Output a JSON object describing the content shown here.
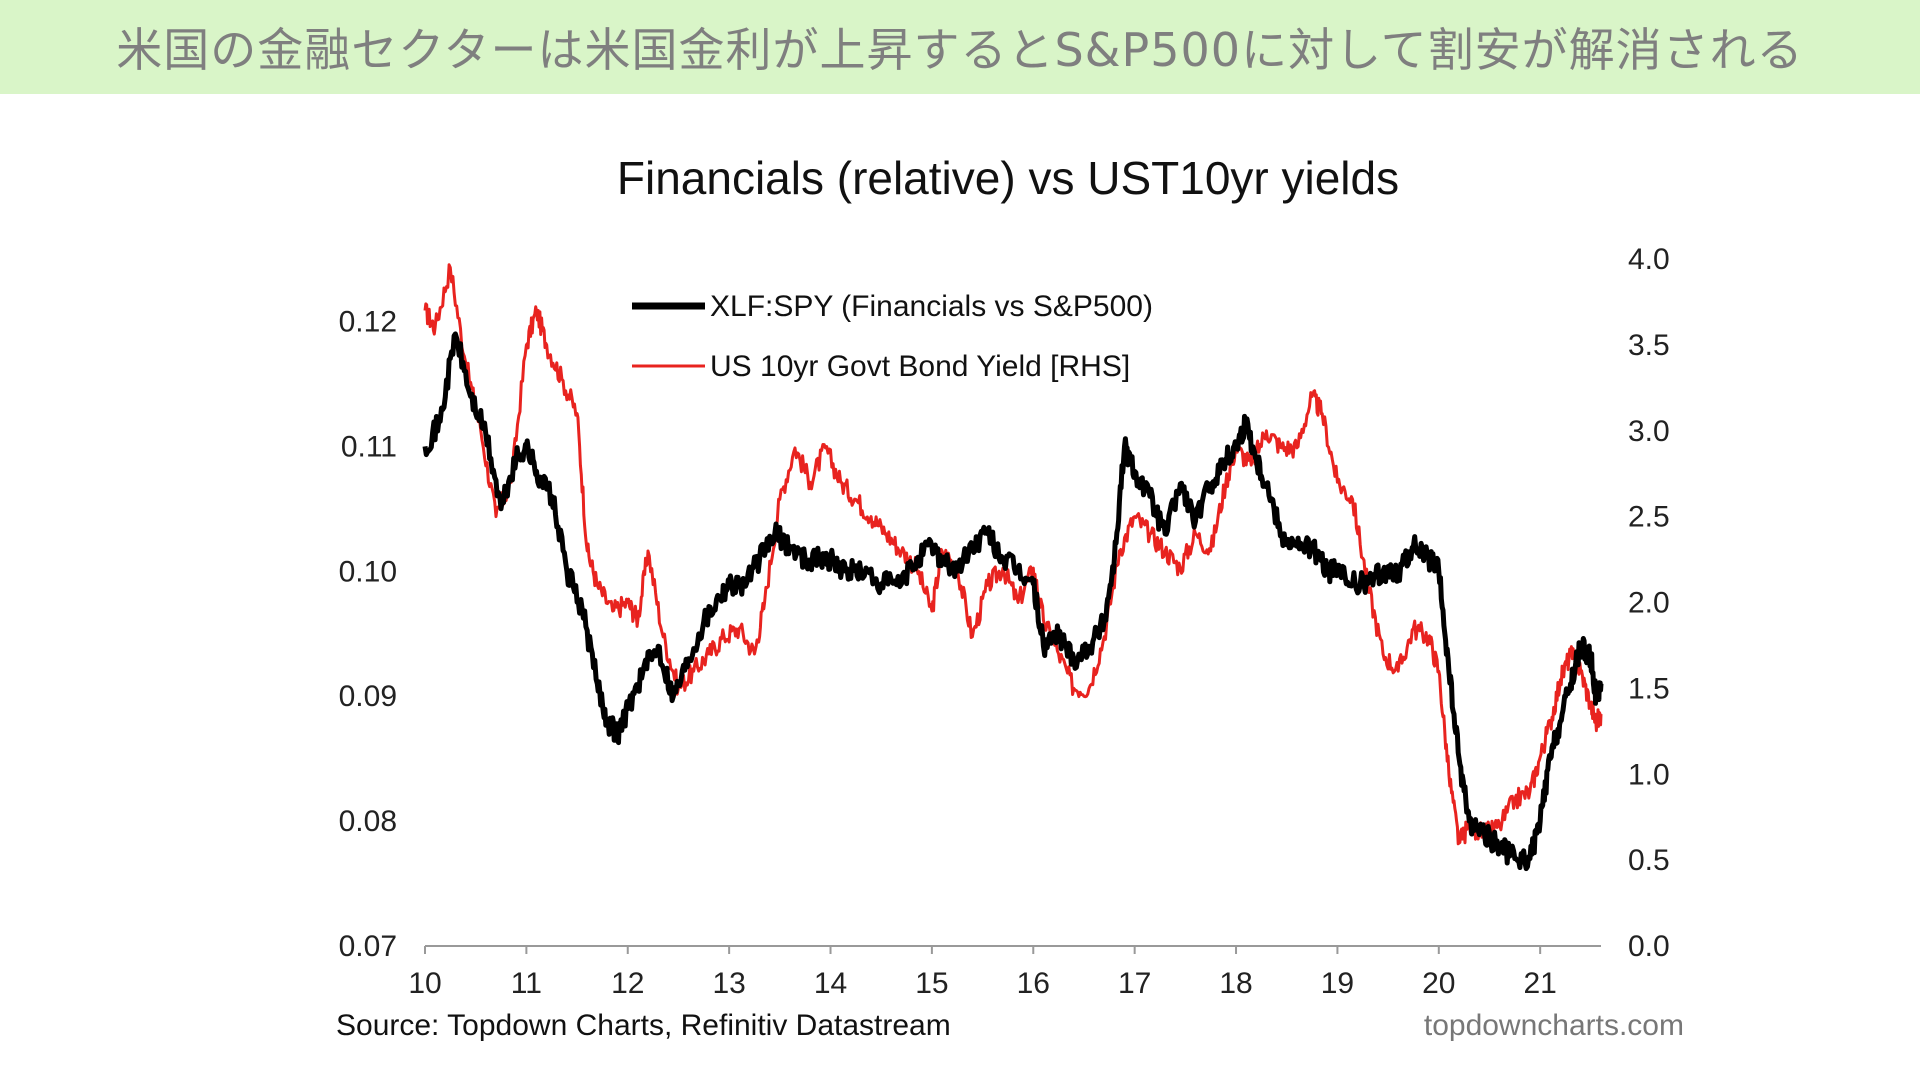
{
  "banner": {
    "text": "米国の金融セクターは米国金利が上昇するとS&P500に対して割安が解消される"
  },
  "colors": {
    "banner_bg": "#d9f5c8",
    "banner_text": "#7f7f7f",
    "xlf_series": "#000000",
    "yield_series": "#e8231f"
  },
  "chart_data": {
    "type": "line",
    "title": "Financials (relative) vs UST10yr yields",
    "source": "Source: Topdown Charts, Refinitiv Datastream",
    "brand": "topdowncharts.com",
    "x_range": [
      10.0,
      21.6
    ],
    "x_ticks": [
      "10",
      "11",
      "12",
      "13",
      "14",
      "15",
      "16",
      "17",
      "18",
      "19",
      "20",
      "21"
    ],
    "y_left": {
      "range": [
        0.07,
        0.125
      ],
      "ticks": [
        "0.07",
        "0.08",
        "0.09",
        "0.10",
        "0.11",
        "0.12"
      ]
    },
    "y_right": {
      "range": [
        0.0,
        4.0
      ],
      "ticks": [
        "0.0",
        "0.5",
        "1.0",
        "1.5",
        "2.0",
        "2.5",
        "3.0",
        "3.5",
        "4.0"
      ]
    },
    "legend_position": "top-left",
    "grid": false,
    "series": [
      {
        "name": "XLF:SPY (Financials vs S&P500)",
        "axis": "left",
        "points": [
          [
            10.0,
            0.11
          ],
          [
            10.15,
            0.112
          ],
          [
            10.3,
            0.119
          ],
          [
            10.45,
            0.114
          ],
          [
            10.6,
            0.111
          ],
          [
            10.75,
            0.105
          ],
          [
            10.9,
            0.109
          ],
          [
            11.0,
            0.11
          ],
          [
            11.1,
            0.108
          ],
          [
            11.25,
            0.106
          ],
          [
            11.4,
            0.1
          ],
          [
            11.55,
            0.097
          ],
          [
            11.7,
            0.091
          ],
          [
            11.8,
            0.088
          ],
          [
            11.9,
            0.087
          ],
          [
            12.0,
            0.089
          ],
          [
            12.15,
            0.092
          ],
          [
            12.3,
            0.094
          ],
          [
            12.45,
            0.09
          ],
          [
            12.6,
            0.093
          ],
          [
            12.75,
            0.096
          ],
          [
            12.9,
            0.098
          ],
          [
            13.0,
            0.099
          ],
          [
            13.15,
            0.099
          ],
          [
            13.3,
            0.101
          ],
          [
            13.45,
            0.103
          ],
          [
            13.6,
            0.102
          ],
          [
            13.75,
            0.101
          ],
          [
            13.9,
            0.101
          ],
          [
            14.0,
            0.101
          ],
          [
            14.15,
            0.1
          ],
          [
            14.3,
            0.1
          ],
          [
            14.5,
            0.099
          ],
          [
            14.7,
            0.099
          ],
          [
            14.85,
            0.101
          ],
          [
            15.0,
            0.102
          ],
          [
            15.1,
            0.101
          ],
          [
            15.25,
            0.1
          ],
          [
            15.4,
            0.102
          ],
          [
            15.55,
            0.103
          ],
          [
            15.7,
            0.101
          ],
          [
            15.85,
            0.1
          ],
          [
            16.0,
            0.099
          ],
          [
            16.1,
            0.094
          ],
          [
            16.25,
            0.095
          ],
          [
            16.4,
            0.093
          ],
          [
            16.55,
            0.094
          ],
          [
            16.7,
            0.096
          ],
          [
            16.8,
            0.101
          ],
          [
            16.9,
            0.11
          ],
          [
            17.0,
            0.108
          ],
          [
            17.15,
            0.106
          ],
          [
            17.3,
            0.103
          ],
          [
            17.45,
            0.107
          ],
          [
            17.6,
            0.104
          ],
          [
            17.75,
            0.107
          ],
          [
            17.9,
            0.109
          ],
          [
            18.0,
            0.11
          ],
          [
            18.1,
            0.112
          ],
          [
            18.2,
            0.109
          ],
          [
            18.3,
            0.107
          ],
          [
            18.45,
            0.103
          ],
          [
            18.6,
            0.102
          ],
          [
            18.75,
            0.102
          ],
          [
            18.9,
            0.1
          ],
          [
            19.0,
            0.1
          ],
          [
            19.15,
            0.099
          ],
          [
            19.3,
            0.099
          ],
          [
            19.45,
            0.1
          ],
          [
            19.6,
            0.1
          ],
          [
            19.75,
            0.102
          ],
          [
            19.9,
            0.101
          ],
          [
            20.0,
            0.1
          ],
          [
            20.1,
            0.092
          ],
          [
            20.2,
            0.085
          ],
          [
            20.3,
            0.08
          ],
          [
            20.45,
            0.079
          ],
          [
            20.6,
            0.078
          ],
          [
            20.75,
            0.077
          ],
          [
            20.9,
            0.077
          ],
          [
            21.0,
            0.08
          ],
          [
            21.1,
            0.085
          ],
          [
            21.2,
            0.088
          ],
          [
            21.3,
            0.091
          ],
          [
            21.4,
            0.094
          ],
          [
            21.5,
            0.093
          ],
          [
            21.55,
            0.09
          ],
          [
            21.6,
            0.091
          ]
        ]
      },
      {
        "name": "US 10yr Govt Bond Yield [RHS]",
        "axis": "right",
        "points": [
          [
            10.0,
            3.7
          ],
          [
            10.1,
            3.6
          ],
          [
            10.25,
            3.95
          ],
          [
            10.4,
            3.4
          ],
          [
            10.55,
            3.0
          ],
          [
            10.7,
            2.5
          ],
          [
            10.85,
            2.7
          ],
          [
            11.0,
            3.5
          ],
          [
            11.1,
            3.7
          ],
          [
            11.2,
            3.5
          ],
          [
            11.35,
            3.3
          ],
          [
            11.5,
            3.1
          ],
          [
            11.6,
            2.3
          ],
          [
            11.7,
            2.1
          ],
          [
            11.85,
            1.95
          ],
          [
            12.0,
            2.0
          ],
          [
            12.1,
            1.9
          ],
          [
            12.2,
            2.3
          ],
          [
            12.35,
            1.8
          ],
          [
            12.5,
            1.5
          ],
          [
            12.65,
            1.6
          ],
          [
            12.8,
            1.7
          ],
          [
            12.95,
            1.8
          ],
          [
            13.1,
            1.85
          ],
          [
            13.25,
            1.7
          ],
          [
            13.35,
            2.0
          ],
          [
            13.5,
            2.6
          ],
          [
            13.65,
            2.9
          ],
          [
            13.8,
            2.7
          ],
          [
            13.95,
            2.9
          ],
          [
            14.1,
            2.7
          ],
          [
            14.25,
            2.6
          ],
          [
            14.4,
            2.5
          ],
          [
            14.55,
            2.4
          ],
          [
            14.7,
            2.3
          ],
          [
            14.85,
            2.2
          ],
          [
            15.0,
            1.95
          ],
          [
            15.1,
            2.3
          ],
          [
            15.25,
            2.2
          ],
          [
            15.4,
            1.8
          ],
          [
            15.55,
            2.1
          ],
          [
            15.7,
            2.2
          ],
          [
            15.85,
            2.0
          ],
          [
            16.0,
            2.2
          ],
          [
            16.1,
            1.9
          ],
          [
            16.25,
            1.7
          ],
          [
            16.4,
            1.5
          ],
          [
            16.55,
            1.5
          ],
          [
            16.7,
            1.8
          ],
          [
            16.85,
            2.3
          ],
          [
            17.0,
            2.5
          ],
          [
            17.15,
            2.4
          ],
          [
            17.3,
            2.3
          ],
          [
            17.45,
            2.2
          ],
          [
            17.6,
            2.4
          ],
          [
            17.75,
            2.3
          ],
          [
            17.9,
            2.7
          ],
          [
            18.0,
            2.9
          ],
          [
            18.15,
            2.8
          ],
          [
            18.3,
            3.0
          ],
          [
            18.45,
            2.9
          ],
          [
            18.6,
            2.9
          ],
          [
            18.75,
            3.2
          ],
          [
            18.85,
            3.1
          ],
          [
            19.0,
            2.7
          ],
          [
            19.15,
            2.6
          ],
          [
            19.3,
            2.1
          ],
          [
            19.45,
            1.7
          ],
          [
            19.6,
            1.6
          ],
          [
            19.75,
            1.85
          ],
          [
            19.9,
            1.8
          ],
          [
            20.0,
            1.6
          ],
          [
            20.1,
            1.0
          ],
          [
            20.2,
            0.6
          ],
          [
            20.3,
            0.7
          ],
          [
            20.45,
            0.65
          ],
          [
            20.6,
            0.7
          ],
          [
            20.75,
            0.85
          ],
          [
            20.9,
            0.9
          ],
          [
            21.0,
            1.1
          ],
          [
            21.1,
            1.3
          ],
          [
            21.2,
            1.55
          ],
          [
            21.3,
            1.7
          ],
          [
            21.4,
            1.6
          ],
          [
            21.5,
            1.4
          ],
          [
            21.55,
            1.3
          ],
          [
            21.6,
            1.35
          ]
        ]
      }
    ]
  }
}
